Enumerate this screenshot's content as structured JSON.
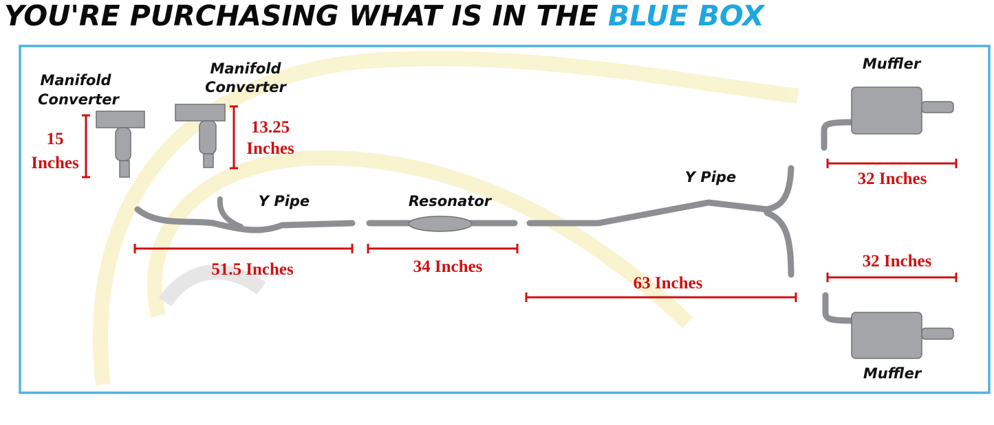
{
  "header": {
    "title": "YOU'RE PURCHASING WHAT IS IN THE",
    "highlight": "BLUE BOX"
  },
  "parts": [
    {
      "label": [
        "Manifold",
        "Converter"
      ],
      "dimension": [
        "15",
        "Inches"
      ]
    },
    {
      "label": [
        "Manifold",
        "Converter"
      ],
      "dimension": [
        "13.25",
        "Inches"
      ]
    },
    {
      "label": [
        "Y Pipe"
      ],
      "dimension": [
        "51.5 Inches"
      ]
    },
    {
      "label": [
        "Resonator"
      ],
      "dimension": [
        "34 Inches"
      ]
    },
    {
      "label": [
        "Y Pipe"
      ],
      "dimension": [
        "63 Inches"
      ]
    },
    {
      "label": [
        "Muffler"
      ],
      "dimension": [
        "32 Inches"
      ]
    },
    {
      "label": [
        "Muffler"
      ],
      "dimension": [
        "32 Inches"
      ]
    }
  ]
}
